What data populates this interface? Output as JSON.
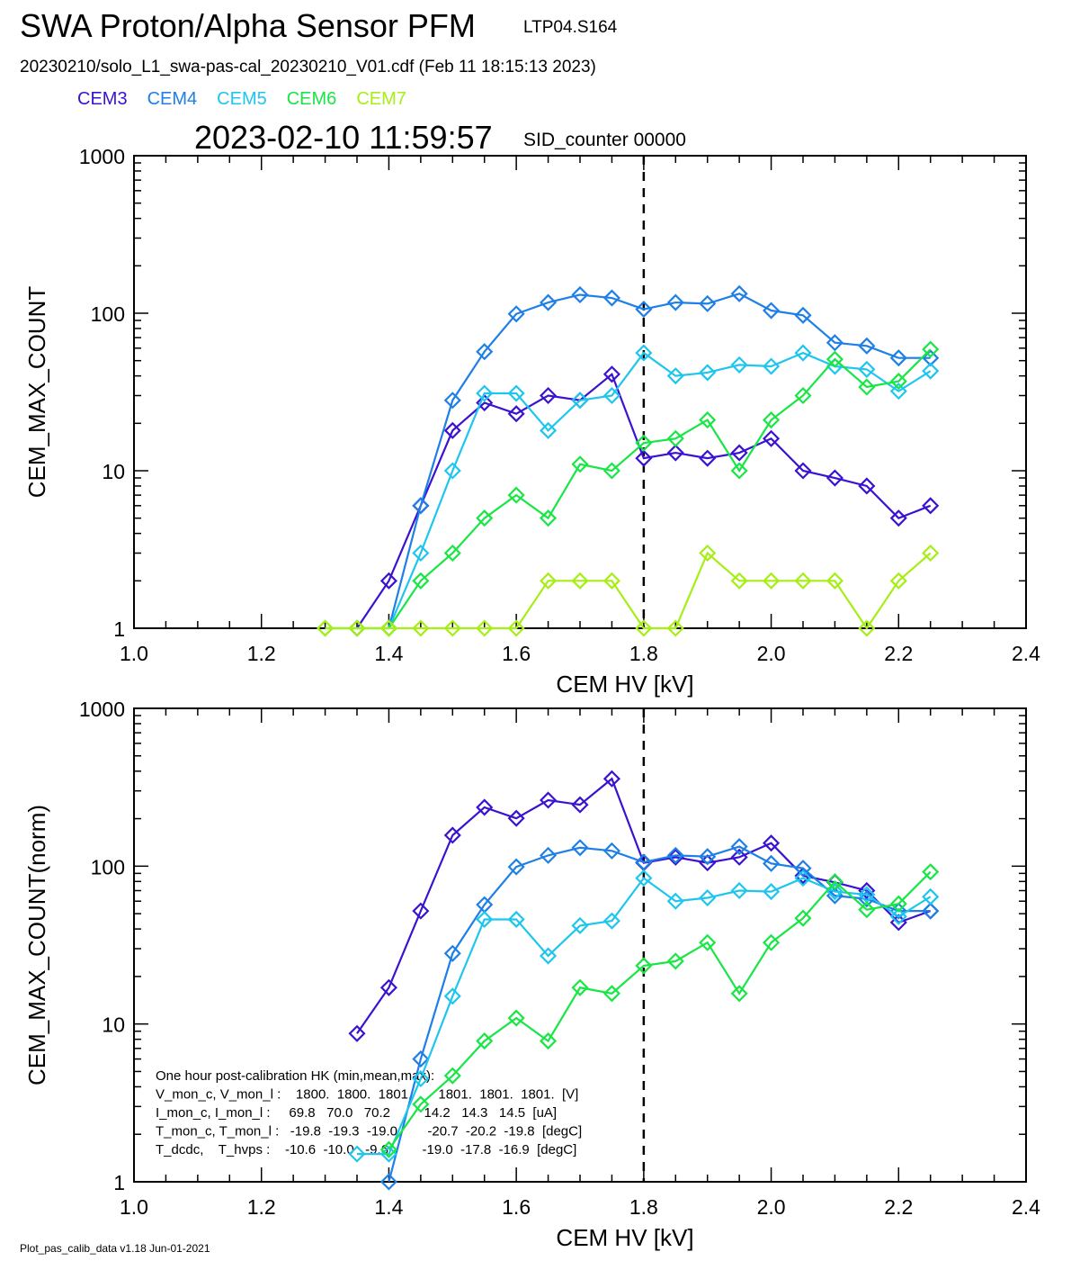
{
  "header": {
    "title": "SWA Proton/Alpha Sensor PFM",
    "run_id": "LTP04.S164",
    "file_line": "20230210/solo_L1_swa-pas-cal_20230210_V01.cdf  (Feb 11 18:15:13 2023)",
    "timestamp": "2023-02-10 11:59:57",
    "sid": "SID_counter 00000"
  },
  "legend": [
    {
      "label": "CEM3",
      "color": "#3a12d0"
    },
    {
      "label": "CEM4",
      "color": "#1e7fe6"
    },
    {
      "label": "CEM5",
      "color": "#1ec6ee"
    },
    {
      "label": "CEM6",
      "color": "#18e645"
    },
    {
      "label": "CEM7",
      "color": "#a6ee14"
    }
  ],
  "footer": "Plot_pas_calib_data v1.18 Jun-01-2021",
  "chart_data": [
    {
      "type": "line",
      "log_y": true,
      "xlabel": "CEM HV [kV]",
      "ylabel": "CEM_MAX_COUNT",
      "xlim": [
        1.0,
        2.4
      ],
      "ylim": [
        1,
        1000
      ],
      "x_ticks": [
        "1.0",
        "1.2",
        "1.4",
        "1.6",
        "1.8",
        "2.0",
        "2.2",
        "2.4"
      ],
      "y_ticks": [
        "1",
        "10",
        "100",
        "1000"
      ],
      "vline_x": 1.8,
      "series": [
        {
          "name": "CEM3",
          "color": "#3a12d0",
          "points": [
            [
              1.35,
              1
            ],
            [
              1.4,
              2
            ],
            [
              1.45,
              6
            ],
            [
              1.5,
              18
            ],
            [
              1.55,
              27
            ],
            [
              1.6,
              23
            ],
            [
              1.65,
              30
            ],
            [
              1.7,
              28
            ],
            [
              1.75,
              41
            ],
            [
              1.8,
              12
            ],
            [
              1.85,
              13
            ],
            [
              1.9,
              12
            ],
            [
              1.95,
              13
            ],
            [
              2.0,
              16
            ],
            [
              2.05,
              10
            ],
            [
              2.1,
              9
            ],
            [
              2.15,
              8
            ],
            [
              2.2,
              5
            ],
            [
              2.25,
              6
            ]
          ]
        },
        {
          "name": "CEM4",
          "color": "#1e7fe6",
          "points": [
            [
              1.4,
              1
            ],
            [
              1.45,
              6
            ],
            [
              1.5,
              28
            ],
            [
              1.55,
              57
            ],
            [
              1.6,
              99
            ],
            [
              1.65,
              117
            ],
            [
              1.7,
              131
            ],
            [
              1.75,
              125
            ],
            [
              1.8,
              106
            ],
            [
              1.85,
              117
            ],
            [
              1.9,
              115
            ],
            [
              1.95,
              133
            ],
            [
              2.0,
              104
            ],
            [
              2.05,
              97
            ],
            [
              2.1,
              65
            ],
            [
              2.15,
              62
            ],
            [
              2.2,
              52
            ],
            [
              2.25,
              52
            ]
          ]
        },
        {
          "name": "CEM5",
          "color": "#1ec6ee",
          "points": [
            [
              1.4,
              1
            ],
            [
              1.45,
              3
            ],
            [
              1.5,
              10
            ],
            [
              1.55,
              31
            ],
            [
              1.6,
              31
            ],
            [
              1.65,
              18
            ],
            [
              1.7,
              28
            ],
            [
              1.75,
              30
            ],
            [
              1.8,
              56
            ],
            [
              1.85,
              40
            ],
            [
              1.9,
              42
            ],
            [
              1.95,
              47
            ],
            [
              2.0,
              46
            ],
            [
              2.05,
              56
            ],
            [
              2.1,
              46
            ],
            [
              2.15,
              44
            ],
            [
              2.2,
              32
            ],
            [
              2.25,
              43
            ]
          ]
        },
        {
          "name": "CEM6",
          "color": "#18e645",
          "points": [
            [
              1.3,
              1
            ],
            [
              1.35,
              1
            ],
            [
              1.4,
              1
            ],
            [
              1.45,
              2
            ],
            [
              1.5,
              3
            ],
            [
              1.55,
              5
            ],
            [
              1.6,
              7
            ],
            [
              1.65,
              5
            ],
            [
              1.7,
              11
            ],
            [
              1.75,
              10
            ],
            [
              1.8,
              15
            ],
            [
              1.85,
              16
            ],
            [
              1.9,
              21
            ],
            [
              1.95,
              10
            ],
            [
              2.0,
              21
            ],
            [
              2.05,
              30
            ],
            [
              2.1,
              51
            ],
            [
              2.15,
              34
            ],
            [
              2.2,
              37
            ],
            [
              2.25,
              59
            ]
          ]
        },
        {
          "name": "CEM7",
          "color": "#a6ee14",
          "points": [
            [
              1.3,
              1
            ],
            [
              1.35,
              1
            ],
            [
              1.4,
              1
            ],
            [
              1.45,
              1
            ],
            [
              1.5,
              1
            ],
            [
              1.55,
              1
            ],
            [
              1.6,
              1
            ],
            [
              1.65,
              2
            ],
            [
              1.7,
              2
            ],
            [
              1.75,
              2
            ],
            [
              1.8,
              1
            ],
            [
              1.85,
              1
            ],
            [
              1.9,
              3
            ],
            [
              1.95,
              2
            ],
            [
              2.0,
              2
            ],
            [
              2.05,
              2
            ],
            [
              2.1,
              2
            ],
            [
              2.15,
              1
            ],
            [
              2.2,
              2
            ],
            [
              2.25,
              3
            ]
          ]
        }
      ]
    },
    {
      "type": "line",
      "log_y": true,
      "xlabel": "CEM HV [kV]",
      "ylabel": "CEM_MAX_COUNT(norm)",
      "xlim": [
        1.0,
        2.4
      ],
      "ylim": [
        1,
        1000
      ],
      "x_ticks": [
        "1.0",
        "1.2",
        "1.4",
        "1.6",
        "1.8",
        "2.0",
        "2.2",
        "2.4"
      ],
      "y_ticks": [
        "1",
        "10",
        "100",
        "1000"
      ],
      "vline_x": 1.8,
      "series": [
        {
          "name": "CEM3",
          "color": "#3a12d0",
          "points": [
            [
              1.35,
              8.7
            ],
            [
              1.4,
              17
            ],
            [
              1.45,
              52
            ],
            [
              1.5,
              157
            ],
            [
              1.55,
              236
            ],
            [
              1.6,
              201
            ],
            [
              1.65,
              262
            ],
            [
              1.7,
              245
            ],
            [
              1.75,
              358
            ],
            [
              1.8,
              105
            ],
            [
              1.85,
              114
            ],
            [
              1.9,
              105
            ],
            [
              1.95,
              114
            ],
            [
              2.0,
              140
            ],
            [
              2.05,
              87
            ],
            [
              2.1,
              79
            ],
            [
              2.15,
              70
            ],
            [
              2.2,
              44
            ],
            [
              2.25,
              52
            ]
          ]
        },
        {
          "name": "CEM4",
          "color": "#1e7fe6",
          "points": [
            [
              1.4,
              1
            ],
            [
              1.45,
              6
            ],
            [
              1.5,
              28
            ],
            [
              1.55,
              57
            ],
            [
              1.6,
              99
            ],
            [
              1.65,
              117
            ],
            [
              1.7,
              131
            ],
            [
              1.75,
              125
            ],
            [
              1.8,
              106
            ],
            [
              1.85,
              117
            ],
            [
              1.9,
              115
            ],
            [
              1.95,
              133
            ],
            [
              2.0,
              104
            ],
            [
              2.05,
              97
            ],
            [
              2.1,
              65
            ],
            [
              2.15,
              62
            ],
            [
              2.2,
              52
            ],
            [
              2.25,
              52
            ]
          ]
        },
        {
          "name": "CEM5",
          "color": "#1ec6ee",
          "points": [
            [
              1.35,
              1.5
            ],
            [
              1.4,
              1.5
            ],
            [
              1.45,
              4.5
            ],
            [
              1.5,
              15
            ],
            [
              1.55,
              46
            ],
            [
              1.6,
              46
            ],
            [
              1.65,
              27
            ],
            [
              1.7,
              42
            ],
            [
              1.75,
              45
            ],
            [
              1.8,
              84
            ],
            [
              1.85,
              60
            ],
            [
              1.9,
              63
            ],
            [
              1.95,
              70
            ],
            [
              2.0,
              69
            ],
            [
              2.05,
              84
            ],
            [
              2.1,
              69
            ],
            [
              2.15,
              66
            ],
            [
              2.2,
              48
            ],
            [
              2.25,
              64
            ]
          ]
        },
        {
          "name": "CEM6",
          "color": "#18e645",
          "points": [
            [
              1.4,
              1.6
            ],
            [
              1.45,
              3.1
            ],
            [
              1.5,
              4.7
            ],
            [
              1.55,
              7.8
            ],
            [
              1.6,
              10.9
            ],
            [
              1.65,
              7.8
            ],
            [
              1.7,
              17
            ],
            [
              1.75,
              15.6
            ],
            [
              1.8,
              23.4
            ],
            [
              1.85,
              25
            ],
            [
              1.9,
              32.8
            ],
            [
              1.95,
              15.6
            ],
            [
              2.0,
              32.8
            ],
            [
              2.05,
              46.8
            ],
            [
              2.1,
              79.6
            ],
            [
              2.15,
              53
            ],
            [
              2.2,
              57.7
            ],
            [
              2.25,
              92
            ]
          ]
        }
      ],
      "annotation": [
        "One hour post-calibration HK (min,mean,max):",
        "V_mon_c, V_mon_l :    1800.  1800.  1801.       1801.  1801.  1801.  [V]",
        "I_mon_c, I_mon_l :     69.8   70.0   70.2         14.2   14.3   14.5  [uA]",
        "T_mon_c, T_mon_l :   -19.8  -19.3  -19.0        -20.7  -20.2  -19.8  [degC]",
        "T_dcdc,    T_hvps :    -10.6  -10.0   -9.6         -19.0  -17.8  -16.9  [degC]"
      ]
    }
  ]
}
